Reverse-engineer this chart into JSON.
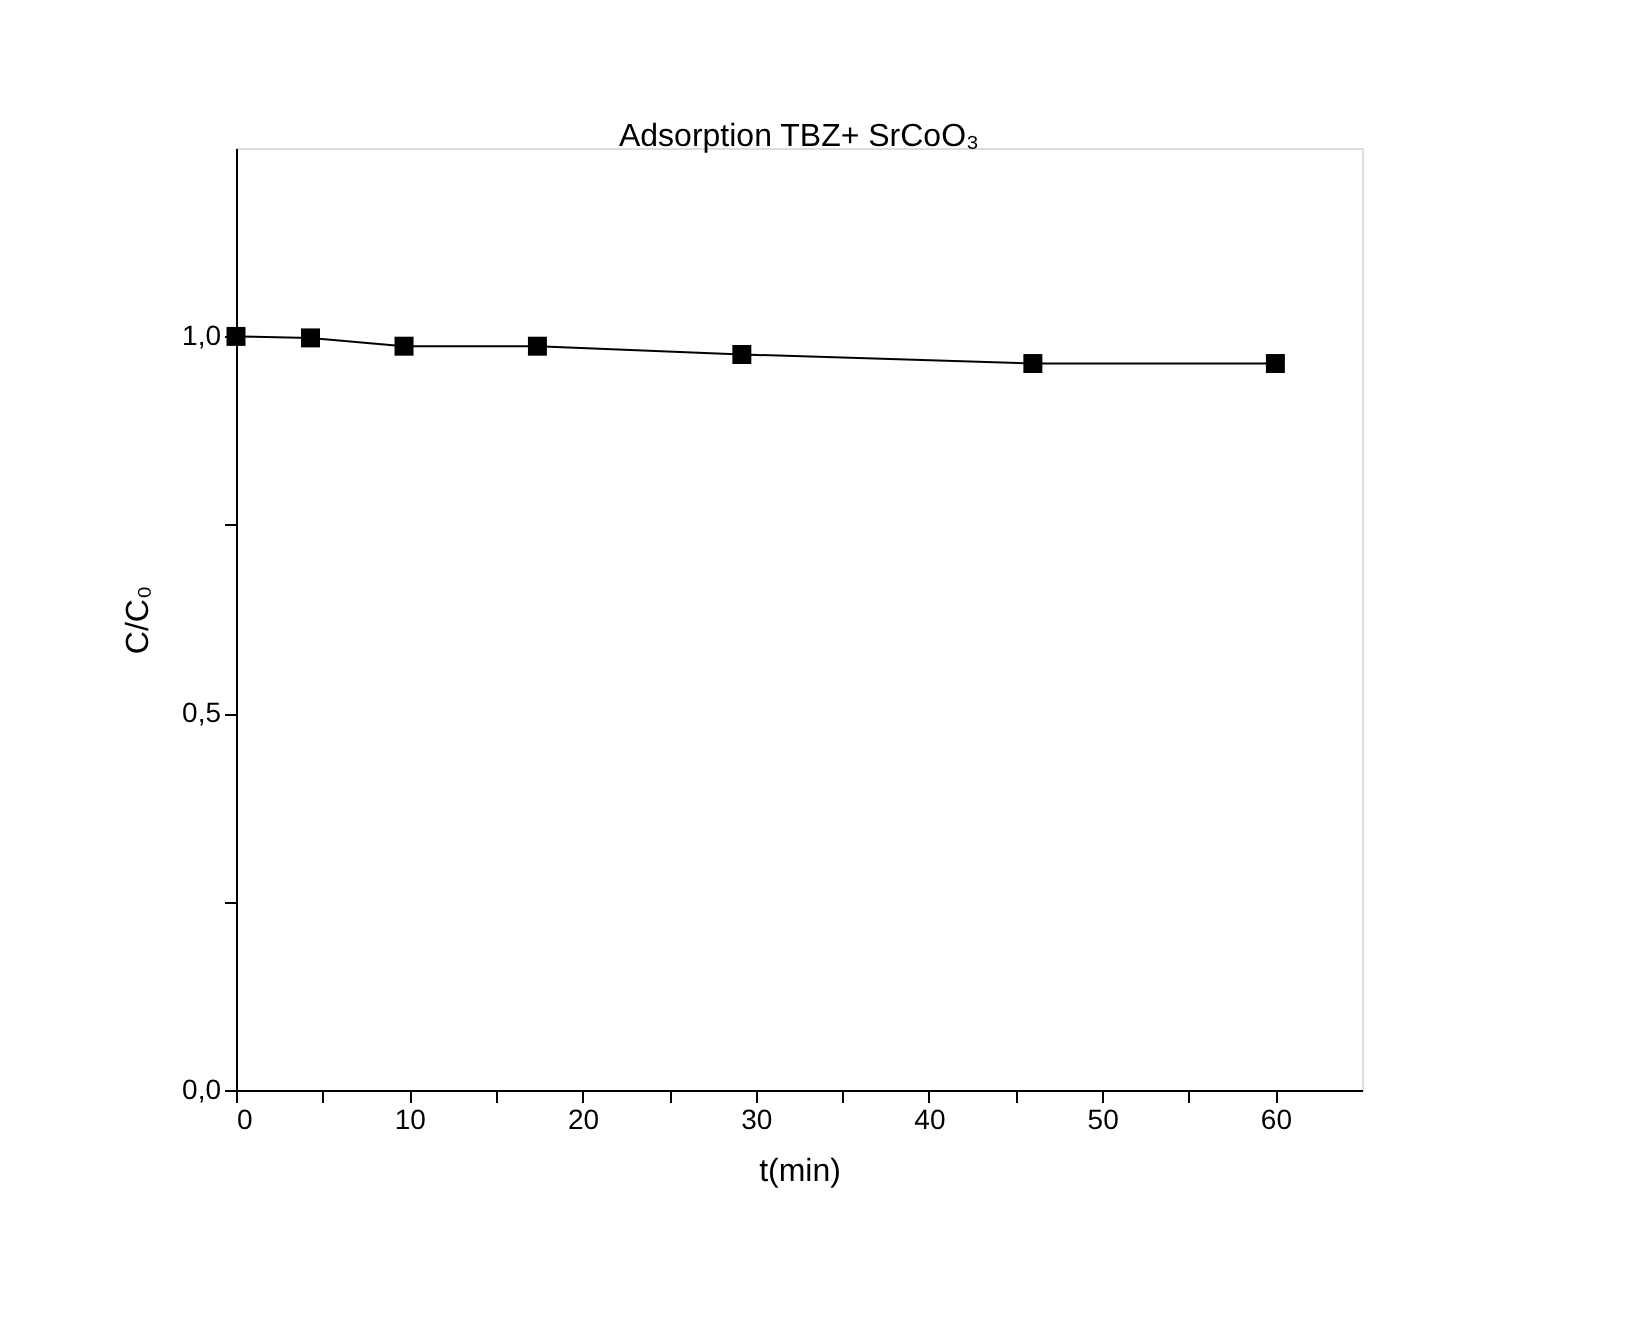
{
  "chart_data": {
    "type": "line",
    "title": "Adsorption TBZ+ SrCoO₃",
    "xlabel": "t(min)",
    "ylabel": "C/C₀",
    "x": [
      0,
      4.3,
      9.7,
      17.4,
      29.2,
      46.0,
      60.0
    ],
    "series": [
      {
        "color": "#000000",
        "values": [
          1.0,
          0.998,
          0.987,
          0.987,
          0.976,
          0.964,
          0.964
        ]
      }
    ],
    "xlim": [
      0,
      65
    ],
    "xticks": [
      0,
      {
        "value": 5,
        "label": null
      },
      10,
      {
        "value": 15,
        "label": null
      },
      20,
      {
        "value": 25,
        "label": null
      },
      30,
      {
        "value": 35,
        "label": null
      },
      40,
      {
        "value": 45,
        "label": null
      },
      50,
      {
        "value": 55,
        "label": null
      },
      60
    ],
    "ylim": [
      0,
      1.25
    ],
    "yticks": [
      {
        "value": 0,
        "label": "0,0"
      },
      {
        "value": 0.25,
        "label": null
      },
      {
        "value": 0.5,
        "label": "0,5"
      },
      {
        "value": 0.75,
        "label": null
      },
      {
        "value": 1.0,
        "label": "1,0"
      }
    ],
    "marker": "square",
    "line_style": "solid",
    "grid": false,
    "legend": false
  }
}
